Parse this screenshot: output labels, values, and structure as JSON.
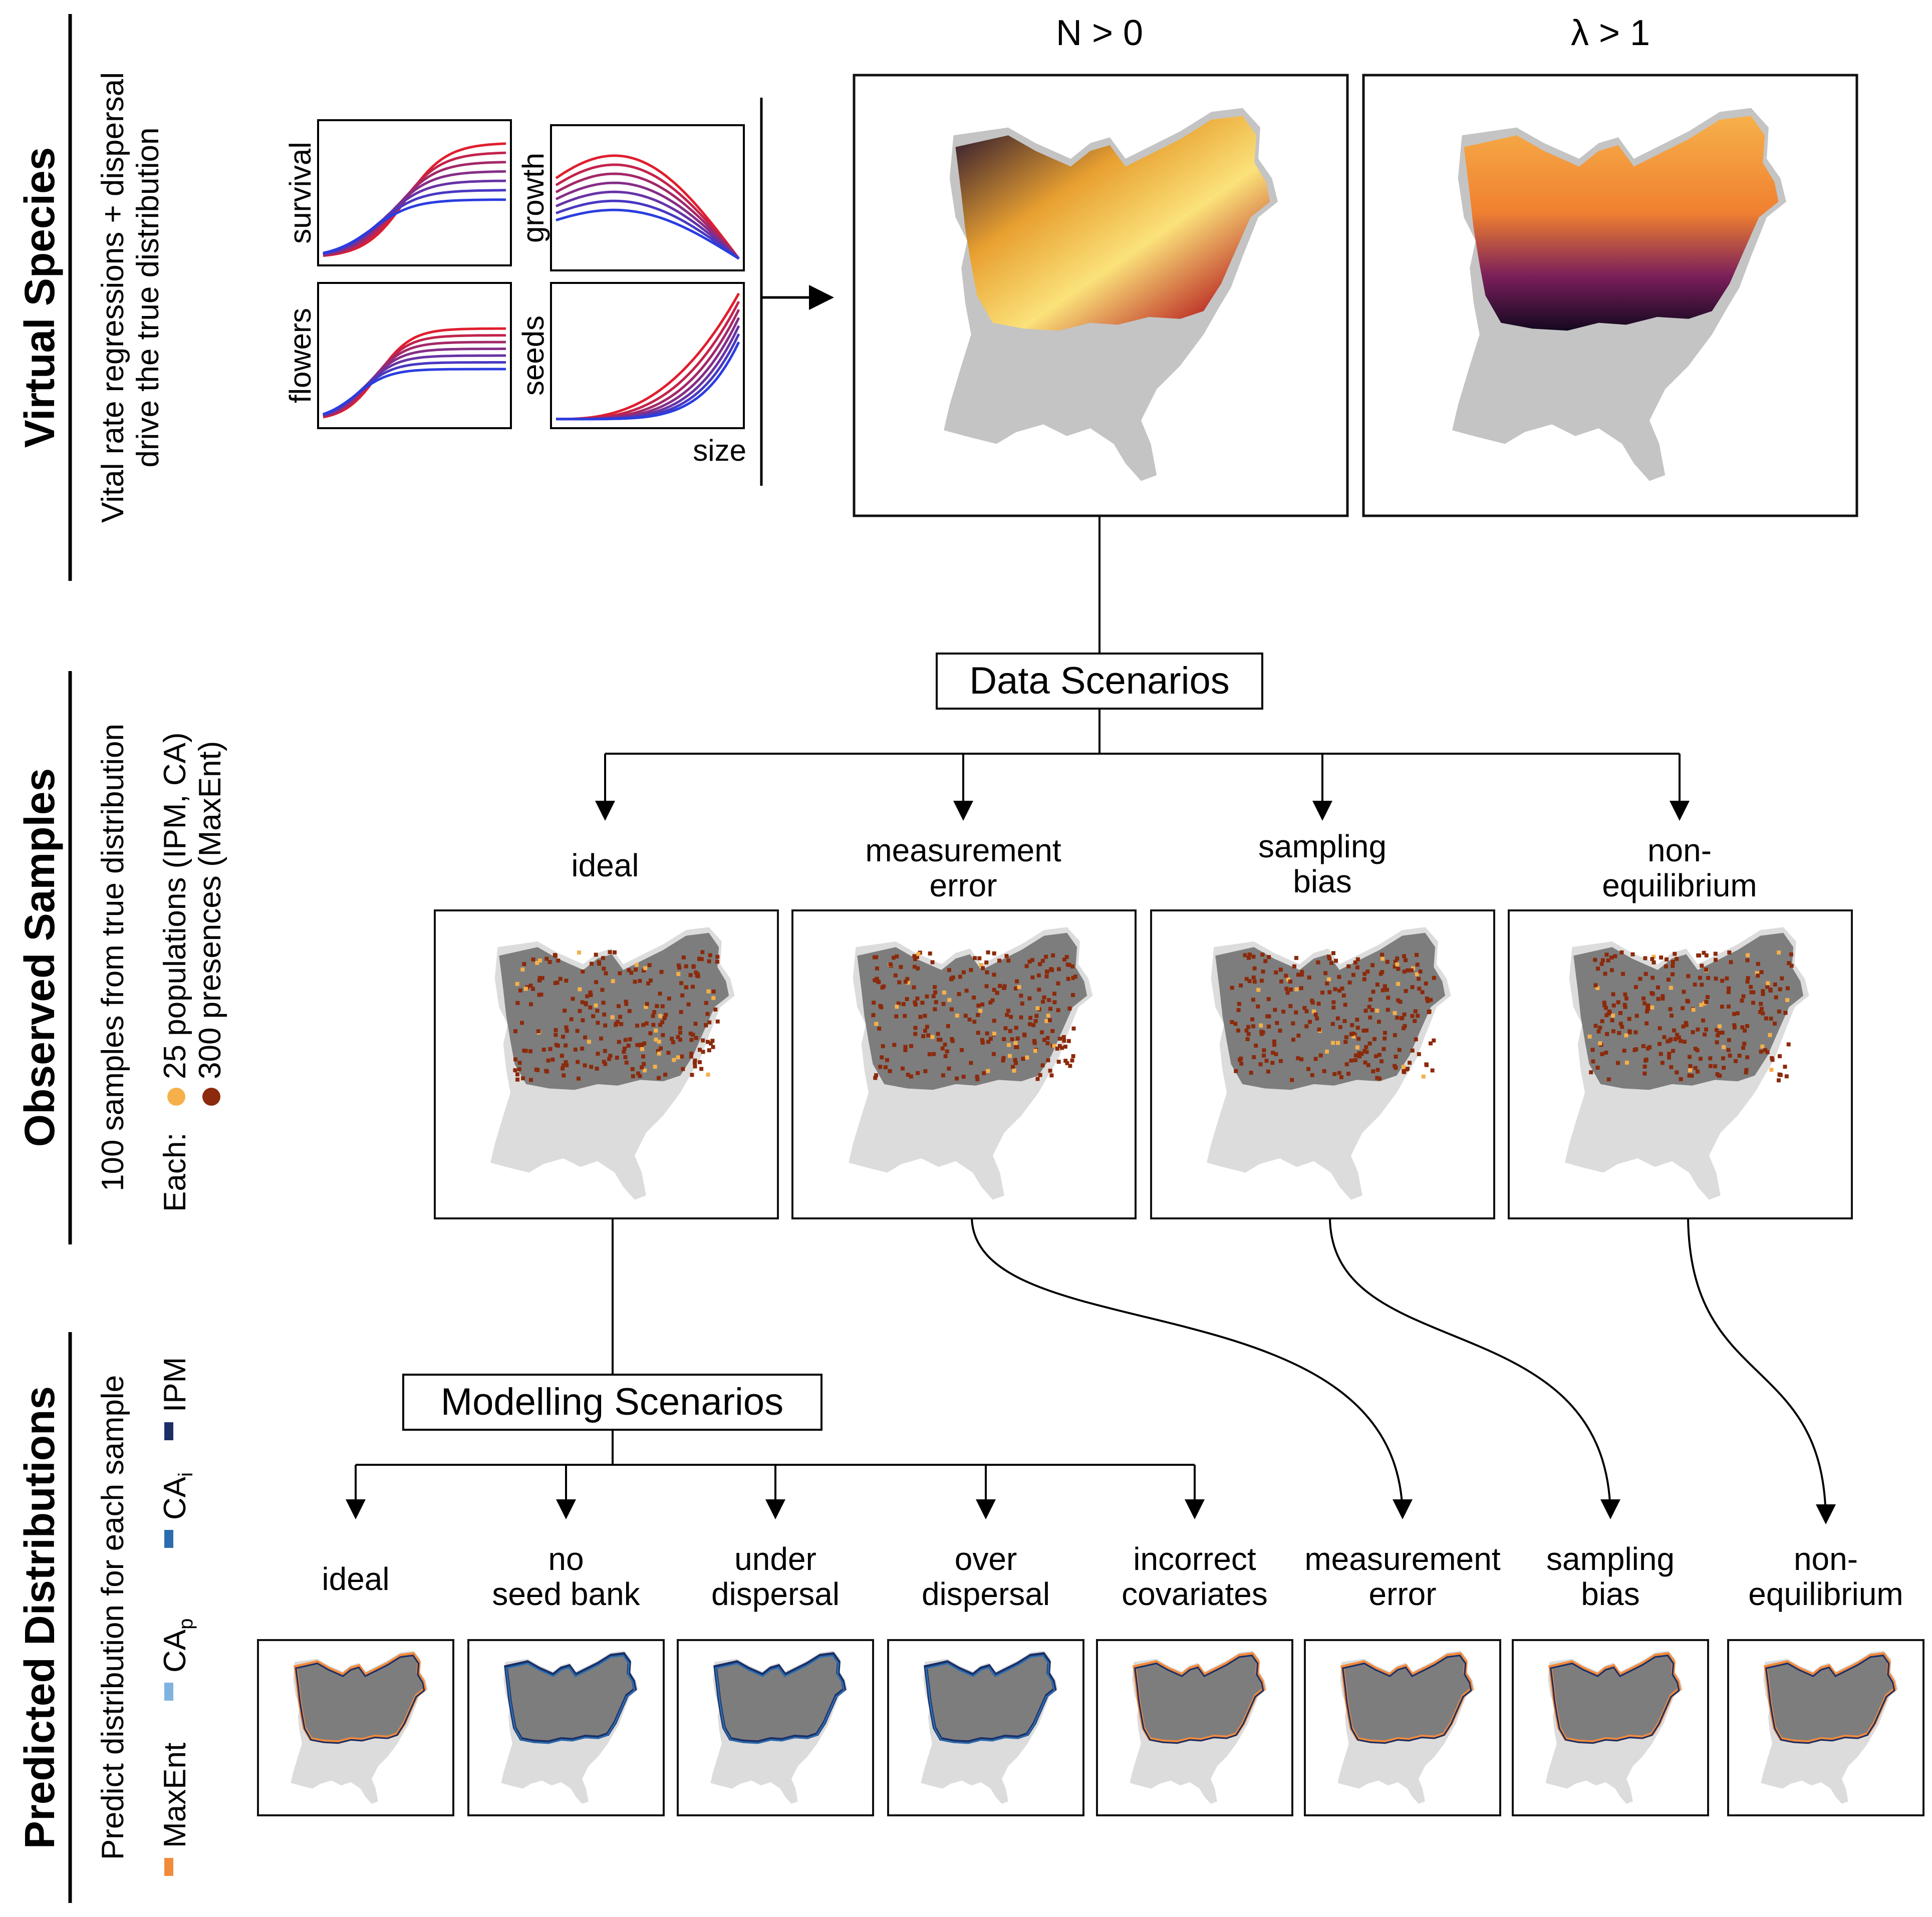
{
  "sections": {
    "virtual": {
      "title": "Virtual Species",
      "desc_line1": "Vital rate regressions + dispersal",
      "desc_line2": "drive the true distribution"
    },
    "observed": {
      "title": "Observed Samples",
      "desc_line1": "100 samples from true distribution",
      "each_label": "Each:",
      "legend": [
        {
          "label": "25 populations (IPM, CA)",
          "color": "#f5b04a"
        },
        {
          "label": "300 presences (MaxEnt)",
          "color": "#8b2a0c"
        }
      ]
    },
    "predicted": {
      "title": "Predicted Distributions",
      "desc_line1": "Predict distribution for each sample",
      "legend": [
        {
          "label": "MaxEnt",
          "color": "#f28a3c"
        },
        {
          "label": "CA",
          "sub": "p",
          "color": "#7fb2df"
        },
        {
          "label": "CA",
          "sub": "i",
          "color": "#2b6cb0"
        },
        {
          "label": "IPM",
          "color": "#1b2f66"
        }
      ]
    }
  },
  "vital_rates": {
    "panels": [
      {
        "label": "survival"
      },
      {
        "label": "growth"
      },
      {
        "label": "flowers"
      },
      {
        "label": "seeds"
      }
    ],
    "x_label": "size",
    "colors": {
      "high": "#e01e2e",
      "low": "#2a3de0"
    }
  },
  "true_maps": [
    {
      "label": "N > 0"
    },
    {
      "label": "λ > 1"
    }
  ],
  "data_scenarios": {
    "box_label": "Data Scenarios",
    "items": [
      {
        "line1": "ideal",
        "line2": ""
      },
      {
        "line1": "measurement",
        "line2": "error"
      },
      {
        "line1": "sampling",
        "line2": "bias"
      },
      {
        "line1": "non-",
        "line2": "equilibrium"
      }
    ]
  },
  "modelling_scenarios": {
    "box_label": "Modelling Scenarios",
    "items": [
      {
        "line1": "ideal",
        "line2": ""
      },
      {
        "line1": "no",
        "line2": "seed bank"
      },
      {
        "line1": "under",
        "line2": "dispersal"
      },
      {
        "line1": "over",
        "line2": "dispersal"
      },
      {
        "line1": "incorrect",
        "line2": "covariates"
      },
      {
        "line1": "measurement",
        "line2": "error"
      },
      {
        "line1": "sampling",
        "line2": "bias"
      },
      {
        "line1": "non-",
        "line2": "equilibrium"
      }
    ]
  },
  "colors": {
    "map_bg": "#c4c4c4",
    "map_light": "#dcdcdc",
    "map_dark": "#7d7d7d"
  }
}
